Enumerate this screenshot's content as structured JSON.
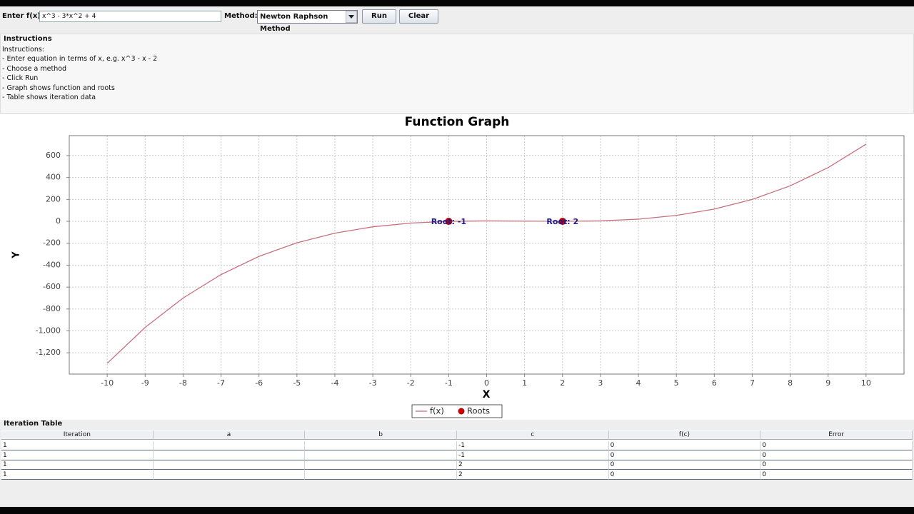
{
  "toolbar": {
    "function_label": "Enter f(x):",
    "function_input": "x^3 - 3*x^2 + 4",
    "method_label": "Method:",
    "method_select": "Newton Raphson Method",
    "run_button": "Run",
    "clear_button": "Clear"
  },
  "instructions": {
    "title": "Instructions",
    "lines": [
      "Instructions:",
      "- Enter equation in terms of x, e.g. x^3 - x - 2",
      "- Choose a method",
      "- Click Run",
      "- Graph shows function and roots",
      "- Table shows iteration data"
    ]
  },
  "chart_data": {
    "type": "line",
    "title": "Function Graph",
    "x_label": "X",
    "y_label": "Y",
    "x": [
      -10,
      -9,
      -8,
      -7,
      -6,
      -5,
      -4,
      -3,
      -2,
      -1,
      0,
      1,
      2,
      3,
      4,
      5,
      6,
      7,
      8,
      9,
      10
    ],
    "series": [
      {
        "name": "f(x)",
        "color": "#c8707e",
        "values": [
          -1296,
          -968,
          -700,
          -486,
          -320,
          -196,
          -108,
          -50,
          -16,
          0,
          4,
          2,
          0,
          4,
          20,
          54,
          112,
          200,
          324,
          490,
          704
        ]
      },
      {
        "name": "Roots",
        "color": "#c00000",
        "type": "scatter",
        "x": [
          -1,
          2
        ],
        "values": [
          0,
          0
        ]
      }
    ],
    "annotations": [
      "Root: -1",
      "Root: 2"
    ],
    "xlim": [
      -11,
      11
    ],
    "xticks": [
      -10,
      -9,
      -8,
      -7,
      -6,
      -5,
      -4,
      -3,
      -2,
      -1,
      0,
      1,
      2,
      3,
      4,
      5,
      6,
      7,
      8,
      9,
      10
    ],
    "ylim": [
      -1394,
      782
    ],
    "yticks": [
      {
        "value": -1200,
        "label": "-1,200"
      },
      {
        "value": -1000,
        "label": "-1,000"
      },
      -800,
      -600,
      -400,
      -200,
      0,
      200,
      400,
      600
    ],
    "grid": true,
    "legend": "bottom"
  },
  "table": {
    "title": "Iteration Table",
    "headers": [
      "Iteration",
      "a",
      "b",
      "c",
      "f(c)",
      "Error"
    ],
    "rows": [
      {
        "iteration": 1,
        "c": -1,
        "fc": 0,
        "error": 0
      },
      {
        "iteration": 1,
        "c": -1,
        "fc": 0,
        "error": 0
      },
      {
        "iteration": 1,
        "c": 2,
        "fc": 0,
        "error": 0
      },
      {
        "iteration": 1,
        "c": 2,
        "fc": 0,
        "error": 0
      }
    ]
  }
}
